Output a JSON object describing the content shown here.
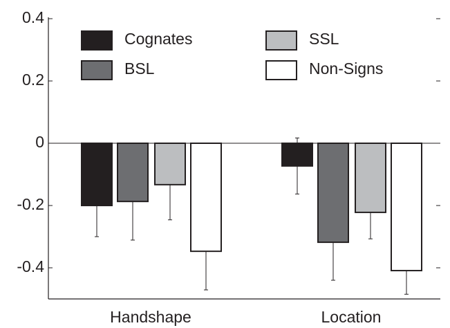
{
  "chart_data": {
    "type": "bar",
    "categories": [
      "Handshape",
      "Location"
    ],
    "series": [
      {
        "name": "Cognates",
        "color": "#231f20",
        "values": [
          -0.2,
          -0.073
        ],
        "errors": [
          0.1,
          0.09
        ]
      },
      {
        "name": "BSL",
        "color": "#6d6e71",
        "values": [
          -0.187,
          -0.318
        ],
        "errors": [
          0.124,
          0.122
        ]
      },
      {
        "name": "SSL",
        "color": "#bcbec0",
        "values": [
          -0.133,
          -0.222
        ],
        "errors": [
          0.113,
          0.085
        ]
      },
      {
        "name": "Non-Signs",
        "color": "#ffffff",
        "values": [
          -0.347,
          -0.409
        ],
        "errors": [
          0.124,
          0.076
        ]
      }
    ],
    "ylim": [
      -0.5,
      0.4
    ],
    "yticks": [
      0.4,
      0.2,
      0,
      -0.2,
      -0.4
    ]
  }
}
